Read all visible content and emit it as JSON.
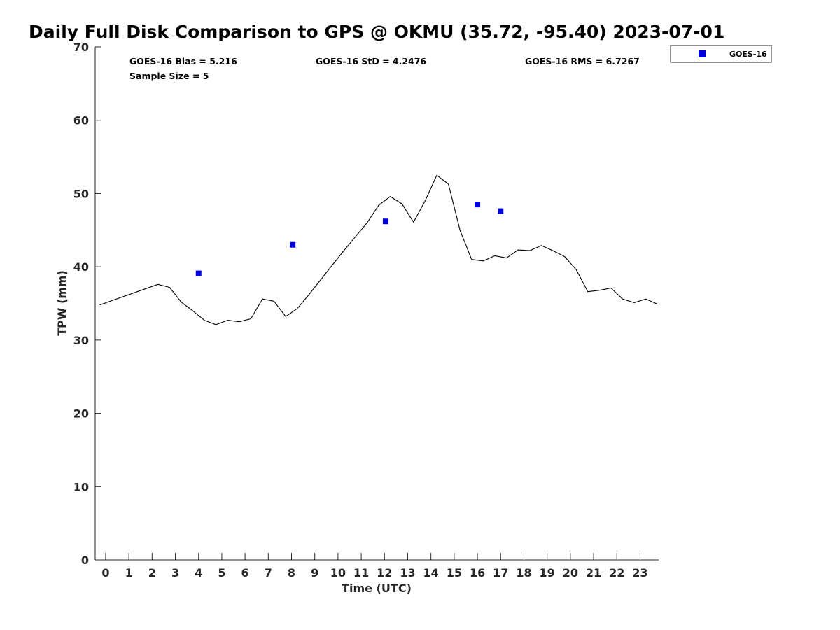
{
  "chart_data": {
    "type": "line",
    "title": "Daily Full Disk Comparison to GPS @ OKMU (35.72, -95.40) 2023-07-01",
    "xlabel": "Time (UTC)",
    "ylabel": "TPW (mm)",
    "xlim": [
      -0.45,
      23.8
    ],
    "ylim": [
      0,
      70
    ],
    "x_ticks": [
      0,
      1,
      2,
      3,
      4,
      5,
      6,
      7,
      8,
      9,
      10,
      11,
      12,
      13,
      14,
      15,
      16,
      17,
      18,
      19,
      20,
      21,
      22,
      23
    ],
    "x_tick_labels": [
      "0",
      "1",
      "2",
      "3",
      "4",
      "5",
      "6",
      "7",
      "8",
      "9",
      "10",
      "11",
      "12",
      "13",
      "14",
      "15",
      "16",
      "17",
      "18",
      "19",
      "20",
      "21",
      "22",
      "23"
    ],
    "y_ticks": [
      0,
      10,
      20,
      30,
      40,
      50,
      60,
      70
    ],
    "y_tick_labels": [
      "0",
      "10",
      "20",
      "30",
      "40",
      "50",
      "60",
      "70"
    ],
    "grid": false,
    "legend_position": "outside-top-right",
    "stats": {
      "bias": "GOES-16 Bias = 5.216",
      "std": "GOES-16 StD = 4.2476",
      "rms": "GOES-16 RMS = 6.7267",
      "sample": "Sample Size = 5"
    },
    "series": [
      {
        "type": "line",
        "color": "#000000",
        "x": [
          -0.25,
          2.25,
          2.75,
          3.25,
          3.75,
          4.25,
          4.75,
          5.25,
          5.75,
          6.25,
          6.75,
          7.25,
          7.75,
          8.25,
          8.75,
          9.25,
          9.75,
          10.25,
          10.75,
          11.25,
          11.75,
          12.25,
          12.75,
          13.25,
          13.75,
          14.25,
          14.75,
          15.25,
          15.75,
          16.25,
          16.75,
          17.25,
          17.75,
          18.25,
          18.75,
          19.25,
          19.75,
          20.25,
          20.75,
          21.25,
          21.75,
          22.25,
          22.75,
          23.25,
          23.75
        ],
        "y": [
          34.8,
          37.6,
          37.2,
          35.2,
          34.0,
          32.7,
          32.1,
          32.7,
          32.5,
          32.9,
          35.6,
          35.3,
          33.2,
          34.3,
          36.2,
          38.2,
          40.2,
          42.2,
          44.1,
          46.0,
          48.4,
          49.6,
          48.6,
          46.1,
          49.0,
          52.5,
          51.3,
          45.0,
          41.0,
          40.8,
          41.5,
          41.2,
          42.3,
          42.2,
          42.9,
          42.2,
          41.4,
          39.6,
          36.6,
          36.8,
          37.1,
          35.6,
          35.1,
          35.6,
          34.9
        ]
      },
      {
        "name": "GOES-16",
        "type": "scatter",
        "color": "#0000dd",
        "x": [
          4.0,
          8.05,
          12.05,
          16.0,
          17.0
        ],
        "y": [
          39.1,
          43.0,
          46.2,
          48.5,
          47.6
        ]
      }
    ]
  }
}
